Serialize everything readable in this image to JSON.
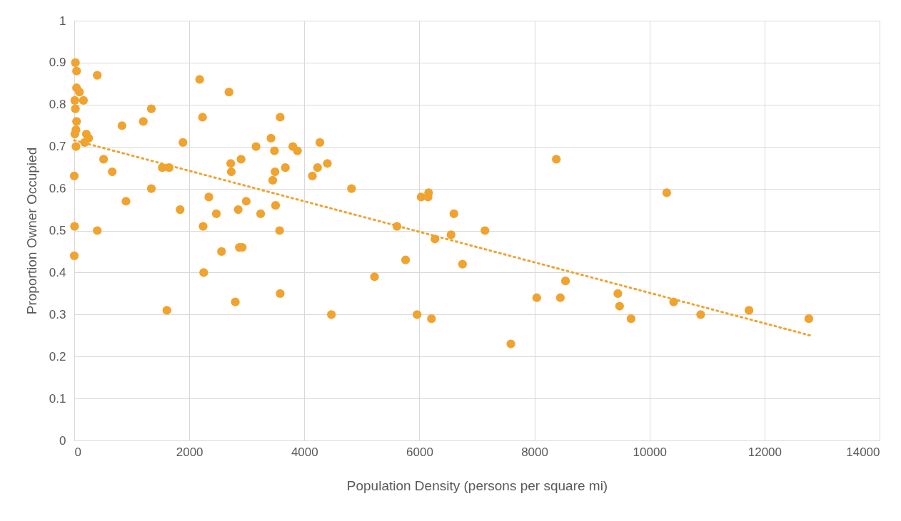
{
  "chart_data": {
    "type": "scatter",
    "xlabel": "Population Density (persons per square mi)",
    "ylabel": "Proportion Owner Occupied",
    "xlim": [
      0,
      14000
    ],
    "xticks": [
      0,
      2000,
      4000,
      6000,
      8000,
      10000,
      12000,
      14000
    ],
    "ylim": [
      0,
      1
    ],
    "yticks": [
      0,
      0.1,
      0.2,
      0.3,
      0.4,
      0.5,
      0.6,
      0.7,
      0.8,
      0.9,
      1
    ],
    "grid": true,
    "marker": "circle",
    "series": [
      {
        "color": "#f0a32f",
        "x": [
          20,
          40,
          400,
          40,
          90,
          10,
          160,
          20,
          1340,
          40,
          830,
          1200,
          2180,
          2690,
          2230,
          3580,
          30,
          10,
          210,
          250,
          180,
          30,
          1890,
          3160,
          3420,
          3480,
          3800,
          3880,
          4270,
          510,
          2900,
          2720,
          4400,
          660,
          1530,
          1650,
          2730,
          3490,
          3670,
          4230,
          4140,
          3450,
          0,
          1340,
          4820,
          2340,
          2990,
          900,
          6030,
          6150,
          6160,
          6600,
          6550,
          6270,
          7140,
          6750,
          5610,
          5760,
          5220,
          5960,
          6210,
          7590,
          8380,
          10300,
          8540,
          8040,
          8450,
          9450,
          9480,
          9680,
          10420,
          10890,
          11730,
          12770,
          1840,
          2850,
          2470,
          3240,
          3500,
          2240,
          3570,
          400,
          5,
          0,
          2560,
          2870,
          2920,
          2250,
          2800,
          1610,
          3580,
          4470
        ],
        "values": [
          0.9,
          0.88,
          0.87,
          0.84,
          0.83,
          0.81,
          0.81,
          0.79,
          0.79,
          0.76,
          0.75,
          0.76,
          0.86,
          0.83,
          0.77,
          0.77,
          0.74,
          0.73,
          0.73,
          0.72,
          0.71,
          0.7,
          0.71,
          0.7,
          0.72,
          0.69,
          0.7,
          0.69,
          0.71,
          0.67,
          0.67,
          0.66,
          0.66,
          0.64,
          0.65,
          0.65,
          0.64,
          0.64,
          0.65,
          0.65,
          0.63,
          0.62,
          0.63,
          0.6,
          0.6,
          0.58,
          0.57,
          0.57,
          0.58,
          0.58,
          0.59,
          0.54,
          0.49,
          0.48,
          0.5,
          0.42,
          0.51,
          0.43,
          0.39,
          0.3,
          0.29,
          0.23,
          0.67,
          0.59,
          0.38,
          0.34,
          0.34,
          0.35,
          0.32,
          0.29,
          0.33,
          0.3,
          0.31,
          0.29,
          0.55,
          0.55,
          0.54,
          0.54,
          0.56,
          0.51,
          0.5,
          0.5,
          0.51,
          0.44,
          0.45,
          0.46,
          0.46,
          0.4,
          0.33,
          0.31,
          0.35,
          0.3
        ]
      },
      {
        "type": "line",
        "color": "#f0a32f",
        "line_style": "dotted",
        "marker": "none",
        "x": [
          0,
          12800
        ],
        "values": [
          0.715,
          0.25
        ]
      }
    ]
  }
}
